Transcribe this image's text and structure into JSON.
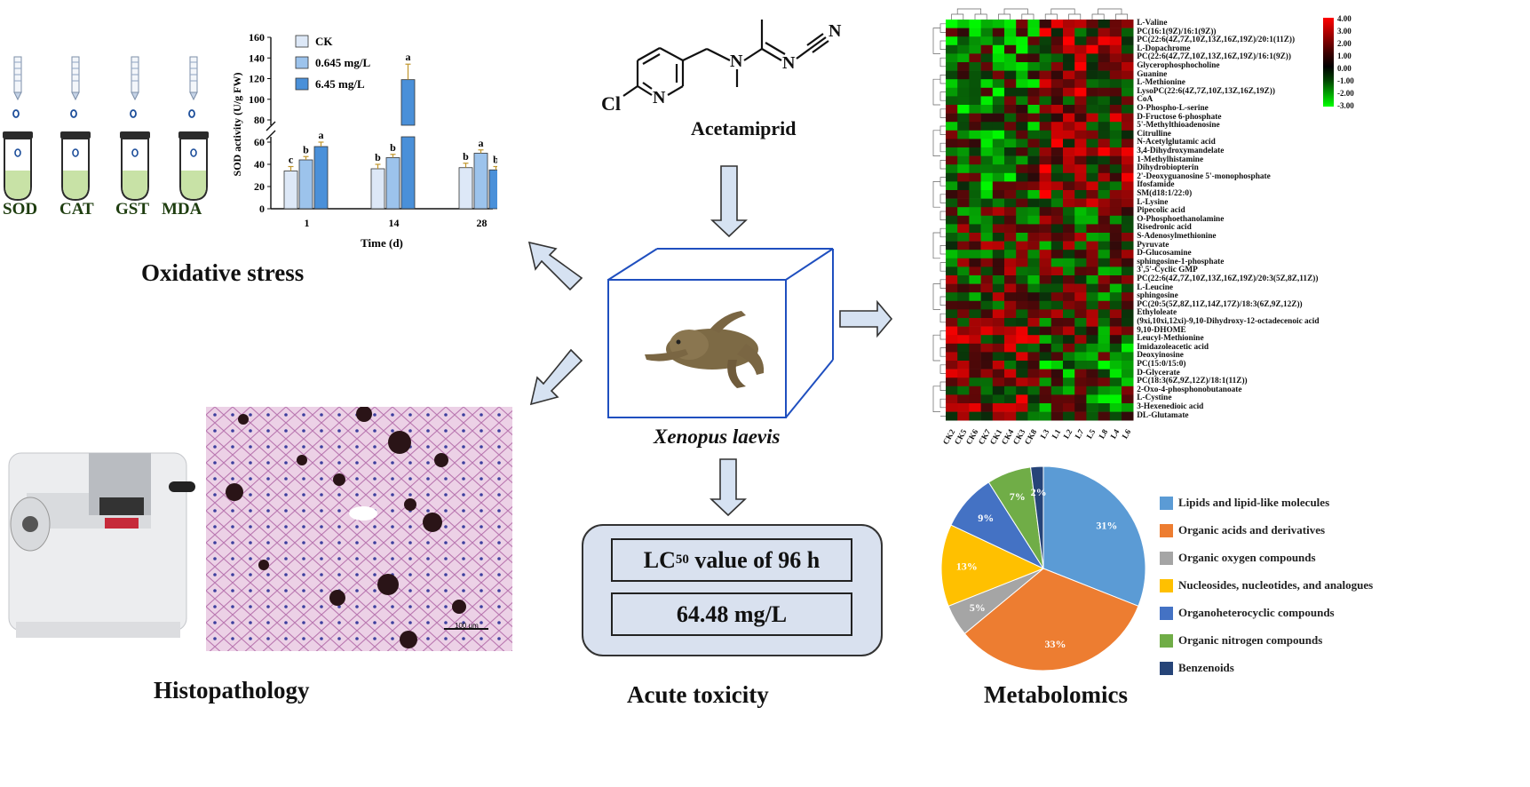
{
  "tubes": [
    {
      "label": "SOD",
      "liquid": "#c8e2a6"
    },
    {
      "label": "CAT",
      "liquid": "#c8e2a6"
    },
    {
      "label": "GST",
      "liquid": "#c8e2a6"
    },
    {
      "label": "MDA",
      "liquid": "#c8e2a6"
    }
  ],
  "section_titles": {
    "oxidative": "Oxidative stress",
    "histopathology": "Histopathology",
    "acute": "Acute toxicity",
    "metabolomics": "Metabolomics"
  },
  "compound": {
    "name": "Acetamiprid",
    "cl_label": "Cl",
    "n_ring": "N",
    "n_amine": "N",
    "n_imine": "N",
    "n_nitrile": "N"
  },
  "organism": "Xenopus laevis",
  "acute": {
    "lc50_main": "LC",
    "lc50_sub": "50",
    "lc50_rest": " value of 96 h",
    "value": "64.48 mg/L"
  },
  "histology": {
    "scale_bar": "100 μm"
  },
  "chart_data": [
    {
      "type": "bar",
      "categories": [
        "1",
        "14",
        "28"
      ],
      "xlabel": "Time (d)",
      "ylabel": "SOD activity (U/g FW)",
      "ylim_lower": [
        0,
        60
      ],
      "ylim_upper": [
        80,
        160
      ],
      "yticks": [
        "0",
        "20",
        "40",
        "60",
        "80",
        "100",
        "120",
        "140",
        "160"
      ],
      "series": [
        {
          "name": "CK",
          "values": [
            34,
            36,
            37
          ],
          "errors": [
            4,
            4,
            4
          ],
          "letters": [
            "c",
            "b",
            "b"
          ],
          "color": "#dde8f7"
        },
        {
          "name": "0.645 mg/L",
          "values": [
            44,
            46,
            50
          ],
          "errors": [
            3,
            3,
            3
          ],
          "letters": [
            "b",
            "b",
            "a"
          ],
          "color": "#9cc3ec"
        },
        {
          "name": "6.45 mg/L",
          "values": [
            56,
            119,
            35
          ],
          "errors": [
            4,
            15,
            3
          ],
          "letters": [
            "a",
            "a",
            "b"
          ],
          "color": "#4a90d9"
        }
      ]
    },
    {
      "type": "pie",
      "categories": [
        "Lipids and lipid-like molecules",
        "Organic acids and derivatives",
        "Organic oxygen compounds",
        "Nucleosides, nucleotides, and analogues",
        "Organoheterocyclic compounds",
        "Organic nitrogen compounds",
        "Benzenoids"
      ],
      "values": [
        31,
        33,
        5,
        13,
        9,
        7,
        2
      ],
      "labels": [
        "31%",
        "33%",
        "5%",
        "13%",
        "9%",
        "7%",
        "2%"
      ],
      "colors": [
        "#5b9bd5",
        "#ed7d31",
        "#a5a5a5",
        "#ffc000",
        "#4472c4",
        "#70ad47",
        "#264478"
      ]
    },
    {
      "type": "heatmap",
      "columns": [
        "CK2",
        "CK5",
        "CK6",
        "CK7",
        "CK1",
        "CK4",
        "CK3",
        "CK8",
        "L3",
        "L1",
        "L2",
        "L7",
        "L5",
        "L8",
        "L4",
        "L6"
      ],
      "rows": [
        "L-Valine",
        "PC(16:1(9Z)/16:1(9Z))",
        "PC(22:6(4Z,7Z,10Z,13Z,16Z,19Z)/20:1(11Z))",
        "L-Dopachrome",
        "PC(22:6(4Z,7Z,10Z,13Z,16Z,19Z)/16:1(9Z))",
        "Glycerophosphocholine",
        "Guanine",
        "L-Methionine",
        "LysoPC(22:6(4Z,7Z,10Z,13Z,16Z,19Z))",
        "CoA",
        "O-Phospho-L-serine",
        "D-Fructose 6-phosphate",
        "5'-Methylthioadenosine",
        "Citrulline",
        "N-Acetylglutamic acid",
        "3,4-Dihydroxymandelate",
        "1-Methylhistamine",
        "Dihydrobiopterin",
        "2'-Deoxyguanosine 5'-monophosphate",
        "Ifosfamide",
        "SM(d18:1/22:0)",
        "L-Lysine",
        "Pipecolic acid",
        "O-Phosphoethanolamine",
        "Risedronic acid",
        "S-Adenosylmethionine",
        "Pyruvate",
        "D-Glucosamine",
        "sphingosine-1-phosphate",
        "3',5'-Cyclic GMP",
        "PC(22:6(4Z,7Z,10Z,13Z,16Z,19Z)/20:3(5Z,8Z,11Z))",
        "L-Leucine",
        "sphingosine",
        "PC(20:5(5Z,8Z,11Z,14Z,17Z)/18:3(6Z,9Z,12Z))",
        "Ethyloleate",
        "(9xi,10xi,12xi)-9,10-Dihydroxy-12-octadecenoic acid",
        "9,10-DHOME",
        "Leucyl-Methionine",
        "Imidazoleacetic acid",
        "Deoxyinosine",
        "PC(15:0/15:0)",
        "D-Glycerate",
        "PC(18:3(6Z,9Z,12Z)/18:1(11Z))",
        "2-Oxo-4-phosphonobutanoate",
        "L-Cystine",
        "3-Hexenedioic acid",
        "DL-Glutamate"
      ],
      "scale_ticks": [
        "4.00",
        "3.00",
        "2.00",
        "1.00",
        "0.00",
        "-1.00",
        "-2.00",
        "-3.00"
      ],
      "range": [
        -3,
        4
      ]
    }
  ]
}
